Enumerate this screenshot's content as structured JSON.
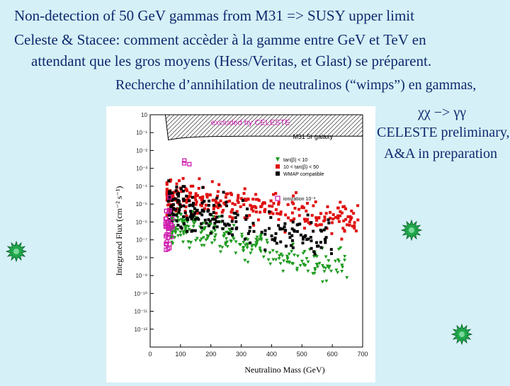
{
  "slide": {
    "title": "Non-detection of 50 GeV gammas from M31  => SUSY upper limit",
    "subtitle_line1": "Celeste & Stacee: comment accèder à la gamme entre GeV et TeV en",
    "subtitle_line2": "attendant que les gros moyens (Hess/Veritas, et Glast) se préparent.",
    "subtitle_line3": "Recherche d’annihilation de neutralinos (“wimps”) en gammas,",
    "formula": "χχ −> γγ",
    "note_line1": "CELESTE preliminary,",
    "note_line2": "A&A in preparation",
    "background_color": "#d6f0f7",
    "text_color": "#0d2a6e",
    "star_color": "#1fa84a",
    "decorations": [
      "starburst-icon",
      "starburst-icon",
      "starburst-icon"
    ]
  },
  "chart_data": {
    "type": "scatter",
    "xlabel": "Neutralino Mass (GeV)",
    "ylabel": "Integrated Flux (cm⁻² s⁻¹)",
    "xlim": [
      0,
      700
    ],
    "xticks": [
      0,
      100,
      200,
      300,
      400,
      500,
      600,
      700
    ],
    "y_log": true,
    "yticks": [
      "10",
      "10⁻¹",
      "10⁻²",
      "10⁻³",
      "10⁻⁴",
      "10⁻⁵",
      "10⁻⁶",
      "10⁻⁷",
      "10⁻⁸",
      "10⁻⁹",
      "10⁻¹⁰",
      "10⁻¹¹",
      "10⁻¹²"
    ],
    "ylim_exp": [
      -12,
      1
    ],
    "excluded_label": "excluded by CELESTE",
    "panel_label": "M31 5r galaxy",
    "legend": [
      {
        "label": "tan(β) < 10",
        "color": "#1e9b1e",
        "marker": "triangle"
      },
      {
        "label": "10 < tan(β) < 50",
        "color": "#e01010",
        "marker": "square"
      },
      {
        "label": "WMAP compatible",
        "color": "#000000",
        "marker": "square"
      },
      {
        "label": "ionization 10⁻²",
        "color": "#d020b0",
        "marker": "open-square"
      }
    ],
    "limit": {
      "ymax_exp": 1,
      "ymin_exp": -0.2,
      "x_start": 50
    },
    "series": [
      {
        "name": "tan(β) < 10",
        "color": "#1e9b1e",
        "marker": "triangle",
        "center_x": 180,
        "x_range": [
          70,
          650
        ],
        "y_exp_center": -5.6,
        "y_exp_spread": 0.9,
        "trend": -0.0043
      },
      {
        "name": "10 < tan(β) < 50",
        "color": "#e01010",
        "marker": "square",
        "center_x": 250,
        "x_range": [
          55,
          690
        ],
        "y_exp_center": -4.0,
        "y_exp_spread": 0.9,
        "trend": -0.002
      },
      {
        "name": "WMAP compatible",
        "color": "#000000",
        "marker": "square",
        "center_x": 200,
        "x_range": [
          60,
          600
        ],
        "y_exp_center": -4.6,
        "y_exp_spread": 1.1,
        "trend": -0.0035
      },
      {
        "name": "ionization 10⁻²",
        "color": "#d020b0",
        "marker": "open-square",
        "center_x": 55,
        "x_range": [
          50,
          120
        ],
        "y_exp_center": -5.2,
        "y_exp_spread": 1.4,
        "trend": 0
      }
    ]
  }
}
